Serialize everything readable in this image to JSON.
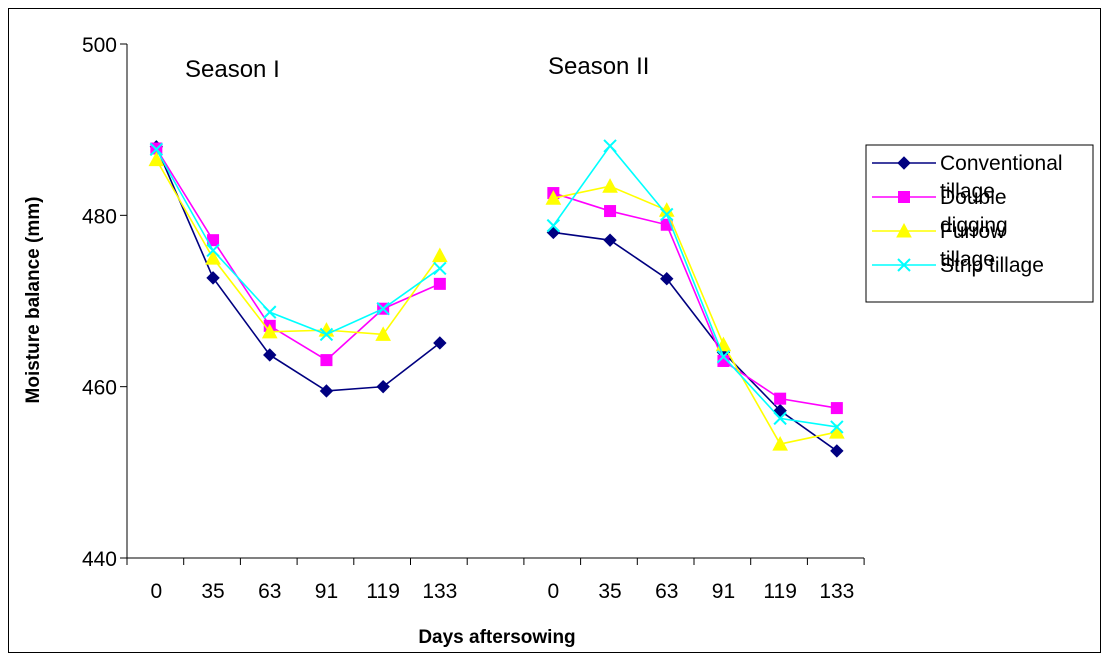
{
  "chart_data": {
    "type": "line",
    "xlabel": "Days aftersowing",
    "ylabel": "Moisture balance (mm)",
    "ylim": [
      440,
      500
    ],
    "yticks": [
      "440",
      "460",
      "480",
      "500"
    ],
    "grid": false,
    "legend_position": "right",
    "panels": [
      {
        "label": "Season I",
        "x": [
          "0",
          "35",
          "63",
          "91",
          "119",
          "133"
        ]
      },
      {
        "label": "Season II",
        "x": [
          "0",
          "35",
          "63",
          "91",
          "119",
          "133"
        ]
      }
    ],
    "series": [
      {
        "legend_lines": [
          "Conventional",
          "tillage"
        ],
        "color": "#000080",
        "marker": "diamond",
        "season1": [
          488.0,
          472.7,
          463.7,
          459.5,
          460.0,
          465.1
        ],
        "season2": [
          478.0,
          477.1,
          472.6,
          464.0,
          457.2,
          452.5
        ]
      },
      {
        "legend_lines": [
          "Double",
          "digging"
        ],
        "color": "#FF00FF",
        "marker": "square",
        "season1": [
          487.8,
          477.1,
          467.1,
          463.1,
          469.1,
          472.0
        ],
        "season2": [
          482.6,
          480.5,
          478.9,
          463.0,
          458.6,
          457.5
        ]
      },
      {
        "legend_lines": [
          "Furrow",
          "tillage"
        ],
        "color": "#FFFF00",
        "marker": "triangle",
        "season1": [
          486.5,
          475.0,
          466.4,
          466.6,
          466.1,
          475.3
        ],
        "season2": [
          482.0,
          483.4,
          480.6,
          464.9,
          453.3,
          454.7
        ]
      },
      {
        "legend_lines": [
          "Strip tillage"
        ],
        "color": "#00FFFF",
        "marker": "x",
        "season1": [
          487.7,
          475.9,
          468.7,
          466.1,
          469.1,
          473.8
        ],
        "season2": [
          478.8,
          488.1,
          480.1,
          463.5,
          456.3,
          455.3
        ]
      }
    ]
  }
}
